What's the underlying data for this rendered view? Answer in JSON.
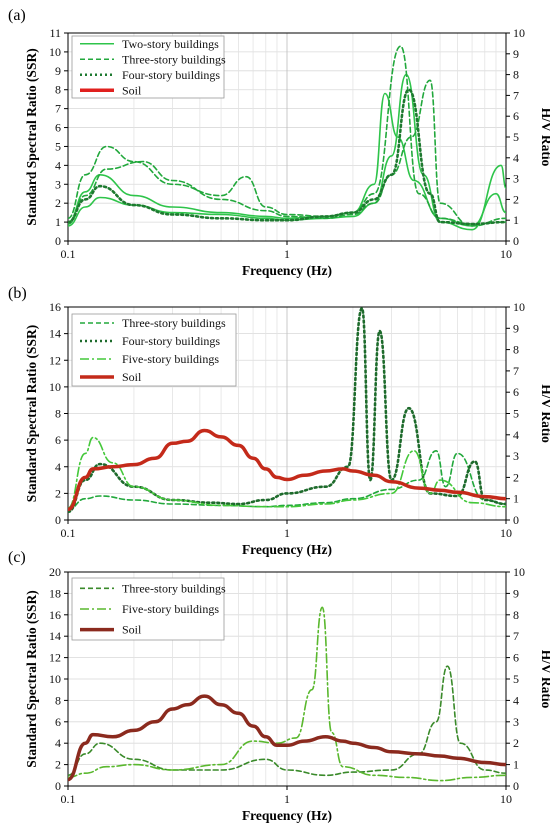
{
  "chart_data": [
    {
      "type": "line",
      "panel_label": "(a)",
      "xlabel": "Frequency (Hz)",
      "ylabel_left": "Standard Spectral Ratio (SSR)",
      "ylabel_right": "H/V Ratio",
      "x_scale": "log",
      "xlim": [
        0.1,
        10
      ],
      "x_ticks": [
        0.1,
        1,
        10
      ],
      "ylim_left": [
        0,
        11
      ],
      "y_ticks_left": [
        0,
        1,
        2,
        3,
        4,
        5,
        6,
        7,
        8,
        9,
        10,
        11
      ],
      "ylim_right": [
        0,
        10
      ],
      "y_ticks_right": [
        0,
        1,
        2,
        3,
        4,
        5,
        6,
        7,
        8,
        9,
        10
      ],
      "grid": true,
      "legend_position": "top-left",
      "legend": [
        {
          "label": "Two-story buildings",
          "style": "solid",
          "color": "#2ec44a"
        },
        {
          "label": "Three-story buildings",
          "style": "dashed",
          "color": "#22a83c"
        },
        {
          "label": "Four-story buildings",
          "style": "dotted",
          "color": "#1e7a30"
        },
        {
          "label": "Soil",
          "style": "thick-solid",
          "color": "#e0201e"
        }
      ],
      "series": [
        {
          "name": "Two-story buildings",
          "axis": "left",
          "style": "solid",
          "color": "#2ec44a",
          "x": [
            0.1,
            0.12,
            0.14,
            0.2,
            0.3,
            0.5,
            0.8,
            1,
            1.5,
            2,
            2.5,
            2.8,
            3.2,
            3.8,
            5,
            7,
            9,
            10
          ],
          "y": [
            1,
            2.6,
            3.5,
            2.4,
            1.8,
            1.5,
            1.3,
            1.2,
            1.3,
            1.5,
            3.0,
            7.8,
            5.5,
            3.2,
            1.2,
            0.8,
            2.5,
            1.5
          ]
        },
        {
          "name": "Two-story buildings",
          "axis": "left",
          "style": "solid",
          "color": "#2ec44a",
          "x": [
            0.1,
            0.12,
            0.14,
            0.2,
            0.3,
            0.5,
            0.8,
            1,
            1.5,
            2,
            2.5,
            3.0,
            3.5,
            4.2,
            5,
            7,
            9.5,
            10
          ],
          "y": [
            0.8,
            1.8,
            2.3,
            1.9,
            1.5,
            1.4,
            1.2,
            1.1,
            1.2,
            1.3,
            2.0,
            4.5,
            8.8,
            3.5,
            1.0,
            0.6,
            4.0,
            2.8
          ]
        },
        {
          "name": "Three-story buildings",
          "axis": "left",
          "style": "dashed",
          "color": "#22a83c",
          "x": [
            0.1,
            0.12,
            0.15,
            0.2,
            0.3,
            0.5,
            0.65,
            0.8,
            1,
            1.5,
            2,
            2.5,
            3.3,
            4.0,
            5,
            7,
            10
          ],
          "y": [
            1.2,
            3.5,
            5.0,
            4.2,
            3.0,
            2.4,
            3.4,
            1.8,
            1.4,
            1.3,
            1.5,
            2.5,
            10.3,
            2.5,
            1.2,
            0.9,
            1.0
          ]
        },
        {
          "name": "Three-story buildings",
          "axis": "left",
          "style": "dashed",
          "color": "#22a83c",
          "x": [
            0.1,
            0.12,
            0.15,
            0.22,
            0.3,
            0.5,
            0.8,
            1,
            1.5,
            2,
            2.5,
            3.0,
            3.7,
            4.5,
            5,
            7,
            10
          ],
          "y": [
            0.9,
            2.4,
            3.8,
            4.2,
            3.2,
            2.2,
            1.6,
            1.3,
            1.2,
            1.4,
            2.0,
            3.5,
            5.5,
            8.5,
            2.0,
            0.8,
            1.2
          ]
        },
        {
          "name": "Four-story buildings",
          "axis": "left",
          "style": "dotted",
          "color": "#1e7a30",
          "x": [
            0.1,
            0.12,
            0.14,
            0.2,
            0.3,
            0.5,
            0.8,
            1,
            1.5,
            2,
            2.5,
            3.0,
            3.6,
            4.5,
            5,
            7,
            10
          ],
          "y": [
            1.0,
            2.2,
            2.9,
            1.9,
            1.4,
            1.2,
            1.1,
            1.1,
            1.3,
            1.5,
            2.2,
            3.5,
            8.0,
            2.5,
            1.0,
            0.9,
            1.0
          ]
        }
      ]
    },
    {
      "type": "line",
      "panel_label": "(b)",
      "xlabel": "Frequency (Hz)",
      "ylabel_left": "Standard Spectral Ratio (SSR)",
      "ylabel_right": "H/V Ratio",
      "x_scale": "log",
      "xlim": [
        0.1,
        10
      ],
      "x_ticks": [
        0.1,
        1,
        10
      ],
      "ylim_left": [
        0,
        16
      ],
      "y_ticks_left": [
        0,
        2,
        4,
        6,
        8,
        10,
        12,
        14,
        16
      ],
      "ylim_right": [
        0,
        10
      ],
      "y_ticks_right": [
        0,
        1,
        2,
        3,
        4,
        5,
        6,
        7,
        8,
        9,
        10
      ],
      "grid": true,
      "legend_position": "top-left",
      "legend": [
        {
          "label": "Three-story buildings",
          "style": "dashed",
          "color": "#22a83c"
        },
        {
          "label": "Four-story buildings",
          "style": "dotted",
          "color": "#1e6b2c"
        },
        {
          "label": "Five-story buildings",
          "style": "dash-dot",
          "color": "#44c83a"
        },
        {
          "label": "Soil",
          "style": "thick-solid",
          "color": "#c42a1a"
        }
      ],
      "series": [
        {
          "name": "Three-story buildings",
          "axis": "left",
          "style": "dashed",
          "color": "#22a83c",
          "x": [
            0.1,
            0.12,
            0.14,
            0.2,
            0.3,
            0.5,
            0.8,
            1,
            1.5,
            2,
            3,
            4,
            4.8,
            5.3,
            6,
            8,
            10
          ],
          "y": [
            0.8,
            1.6,
            1.8,
            1.5,
            1.2,
            1.1,
            1.0,
            1.1,
            1.3,
            1.6,
            2.3,
            3.0,
            5.2,
            2.5,
            5.0,
            1.5,
            1.2
          ]
        },
        {
          "name": "Four-story buildings",
          "axis": "left",
          "style": "dotted",
          "color": "#1e6b2c",
          "x": [
            0.1,
            0.12,
            0.14,
            0.2,
            0.3,
            0.45,
            0.6,
            0.8,
            1,
            1.5,
            1.9,
            2.2,
            2.4,
            2.65,
            3.0,
            3.6,
            4.5,
            6,
            7.2,
            8,
            10
          ],
          "y": [
            0.6,
            3.0,
            4.2,
            2.5,
            1.5,
            1.3,
            1.2,
            1.5,
            2.0,
            2.5,
            4.0,
            15.9,
            3.0,
            14.2,
            3.0,
            8.4,
            2.0,
            1.8,
            4.4,
            1.5,
            1.2
          ]
        },
        {
          "name": "Five-story buildings",
          "axis": "left",
          "style": "dash-dot",
          "color": "#44c83a",
          "x": [
            0.1,
            0.12,
            0.13,
            0.16,
            0.2,
            0.3,
            0.5,
            0.8,
            1,
            1.5,
            2,
            3,
            3.8,
            4.5,
            5,
            7,
            10
          ],
          "y": [
            0.9,
            5.0,
            6.2,
            4.3,
            2.5,
            1.5,
            1.1,
            1.0,
            1.0,
            1.2,
            1.5,
            2.0,
            5.2,
            2.0,
            3.0,
            1.3,
            1.0
          ]
        },
        {
          "name": "Soil",
          "axis": "right",
          "style": "thick-solid",
          "color": "#c42a1a",
          "x": [
            0.1,
            0.12,
            0.13,
            0.16,
            0.2,
            0.25,
            0.3,
            0.35,
            0.42,
            0.5,
            0.6,
            0.7,
            0.8,
            0.9,
            1.0,
            1.2,
            1.5,
            1.8,
            2.0,
            2.5,
            3.0,
            4.0,
            5.0,
            6.0,
            8.0,
            10.0
          ],
          "y": [
            0.5,
            2.0,
            2.4,
            2.5,
            2.6,
            2.9,
            3.6,
            3.7,
            4.2,
            3.9,
            3.5,
            2.9,
            2.4,
            2.0,
            1.9,
            2.1,
            2.3,
            2.4,
            2.3,
            2.1,
            1.8,
            1.5,
            1.4,
            1.3,
            1.1,
            1.0
          ]
        }
      ]
    },
    {
      "type": "line",
      "panel_label": "(c)",
      "xlabel": "Frequency (Hz)",
      "ylabel_left": "Standard Spectral Ratio (SSR)",
      "ylabel_right": "H/V Ratio",
      "x_scale": "log",
      "xlim": [
        0.1,
        10
      ],
      "x_ticks": [
        0.1,
        1,
        10
      ],
      "ylim_left": [
        0,
        20
      ],
      "y_ticks_left": [
        0,
        2,
        4,
        6,
        8,
        10,
        12,
        14,
        16,
        18,
        20
      ],
      "ylim_right": [
        0,
        10
      ],
      "y_ticks_right": [
        0,
        1,
        2,
        3,
        4,
        5,
        6,
        7,
        8,
        9,
        10
      ],
      "grid": true,
      "legend_position": "top-left",
      "legend": [
        {
          "label": "Three-story buildings",
          "style": "dashed",
          "color": "#3a8a2a"
        },
        {
          "label": "Five-story buildings",
          "style": "dash-dot",
          "color": "#5ab82e"
        },
        {
          "label": "Soil",
          "style": "thick-solid",
          "color": "#8b2a1e"
        }
      ],
      "series": [
        {
          "name": "Three-story buildings",
          "axis": "left",
          "style": "dashed",
          "color": "#3a8a2a",
          "x": [
            0.1,
            0.12,
            0.14,
            0.2,
            0.3,
            0.5,
            0.8,
            1,
            1.5,
            2,
            3,
            4,
            4.8,
            5.4,
            6.2,
            8,
            10
          ],
          "y": [
            1.0,
            3.0,
            4.0,
            2.5,
            1.5,
            1.5,
            2.5,
            1.5,
            1.0,
            1.3,
            1.5,
            3.0,
            6.0,
            11.2,
            4.0,
            1.5,
            1.2
          ]
        },
        {
          "name": "Five-story buildings",
          "axis": "left",
          "style": "dash-dot",
          "color": "#5ab82e",
          "x": [
            0.1,
            0.12,
            0.15,
            0.2,
            0.3,
            0.5,
            0.7,
            0.9,
            1.1,
            1.3,
            1.45,
            1.6,
            1.8,
            2.5,
            3.5,
            5,
            7,
            10
          ],
          "y": [
            0.8,
            1.2,
            1.8,
            2.0,
            1.5,
            2.0,
            4.2,
            4.0,
            4.5,
            9.0,
            16.7,
            5.0,
            1.8,
            1.0,
            0.8,
            0.5,
            0.8,
            1.0
          ]
        },
        {
          "name": "Soil",
          "axis": "right",
          "style": "thick-solid",
          "color": "#8b2a1e",
          "x": [
            0.1,
            0.12,
            0.13,
            0.16,
            0.2,
            0.25,
            0.3,
            0.35,
            0.42,
            0.5,
            0.6,
            0.7,
            0.8,
            0.9,
            1.0,
            1.2,
            1.5,
            1.8,
            2.0,
            2.5,
            3.0,
            4.0,
            5.0,
            6.0,
            8.0,
            10.0
          ],
          "y": [
            0.3,
            2.0,
            2.4,
            2.3,
            2.6,
            3.0,
            3.6,
            3.8,
            4.2,
            3.8,
            3.4,
            2.8,
            2.3,
            1.9,
            1.9,
            2.1,
            2.3,
            2.1,
            2.0,
            1.8,
            1.6,
            1.5,
            1.4,
            1.3,
            1.1,
            1.0
          ]
        }
      ]
    }
  ]
}
